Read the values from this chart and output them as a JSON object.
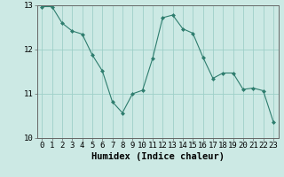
{
  "x": [
    0,
    1,
    2,
    3,
    4,
    5,
    6,
    7,
    8,
    9,
    10,
    11,
    12,
    13,
    14,
    15,
    16,
    17,
    18,
    19,
    20,
    21,
    22,
    23
  ],
  "y": [
    12.97,
    12.97,
    12.6,
    12.42,
    12.35,
    11.88,
    11.52,
    10.82,
    10.57,
    11.0,
    11.08,
    11.8,
    12.72,
    12.78,
    12.47,
    12.37,
    11.83,
    11.35,
    11.47,
    11.47,
    11.1,
    11.13,
    11.07,
    10.37
  ],
  "line_color": "#2e7d6e",
  "marker": "D",
  "marker_size": 2.0,
  "bg_color": "#cce9e4",
  "grid_color": "#9ecfc8",
  "axis_color": "#666666",
  "xlabel": "Humidex (Indice chaleur)",
  "xlabel_fontsize": 7.5,
  "tick_fontsize": 6.5,
  "ylim": [
    10,
    13
  ],
  "xlim_min": -0.5,
  "xlim_max": 23.5,
  "yticks": [
    10,
    11,
    12,
    13
  ],
  "xticks": [
    0,
    1,
    2,
    3,
    4,
    5,
    6,
    7,
    8,
    9,
    10,
    11,
    12,
    13,
    14,
    15,
    16,
    17,
    18,
    19,
    20,
    21,
    22,
    23
  ]
}
